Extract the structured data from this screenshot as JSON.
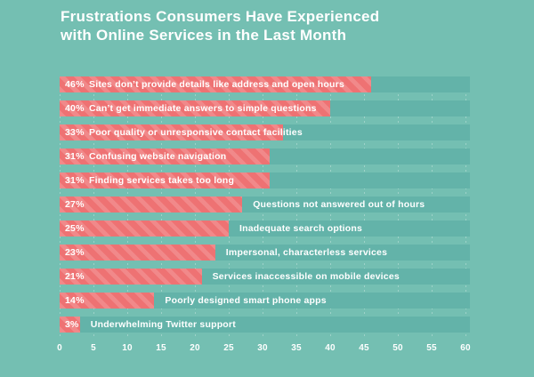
{
  "page": {
    "background_color": "#74bfb2"
  },
  "title": {
    "line1": "Frustrations Consumers Have Experienced",
    "line2": "with Online Services in the Last Month",
    "full": "Frustrations Consumers Have Experienced with Online Services in the Last Month"
  },
  "chart_data": {
    "type": "bar",
    "orientation": "horizontal",
    "title": "Frustrations Consumers Have Experienced with Online Services in the Last Month",
    "categories": [
      "Sites don’t provide details like address and open hours",
      "Can’t get immediate answers to simple questions",
      "Poor quality or unresponsive contact facilities",
      "Confusing website navigation",
      "Finding services takes too long",
      "Questions not answered out of hours",
      "Inadequate search options",
      "Impersonal, characterless services",
      "Services inaccessible on mobile devices",
      "Poorly designed smart phone apps",
      "Underwhelming Twitter support"
    ],
    "values": [
      46,
      40,
      33,
      31,
      31,
      27,
      25,
      23,
      21,
      14,
      3
    ],
    "value_labels": [
      "46%",
      "40%",
      "33%",
      "31%",
      "31%",
      "27%",
      "25%",
      "23%",
      "21%",
      "14%",
      "3%"
    ],
    "label_inside_bar": [
      true,
      true,
      true,
      true,
      true,
      false,
      false,
      false,
      false,
      false,
      false
    ],
    "xlim": [
      0,
      60
    ],
    "x_ticks": [
      "0",
      "5",
      "10",
      "15",
      "20",
      "25",
      "30",
      "35",
      "40",
      "45",
      "50",
      "55",
      "60"
    ],
    "grid": "vertical-dashed",
    "legend": "none",
    "colors": {
      "background": "#74bfb2",
      "row_track": "#63b3a9",
      "bar": "#ee7273",
      "bar_stripe": "#f28c8b",
      "text": "#ffffff",
      "gridline": "rgba(255,255,255,0.30)"
    }
  }
}
